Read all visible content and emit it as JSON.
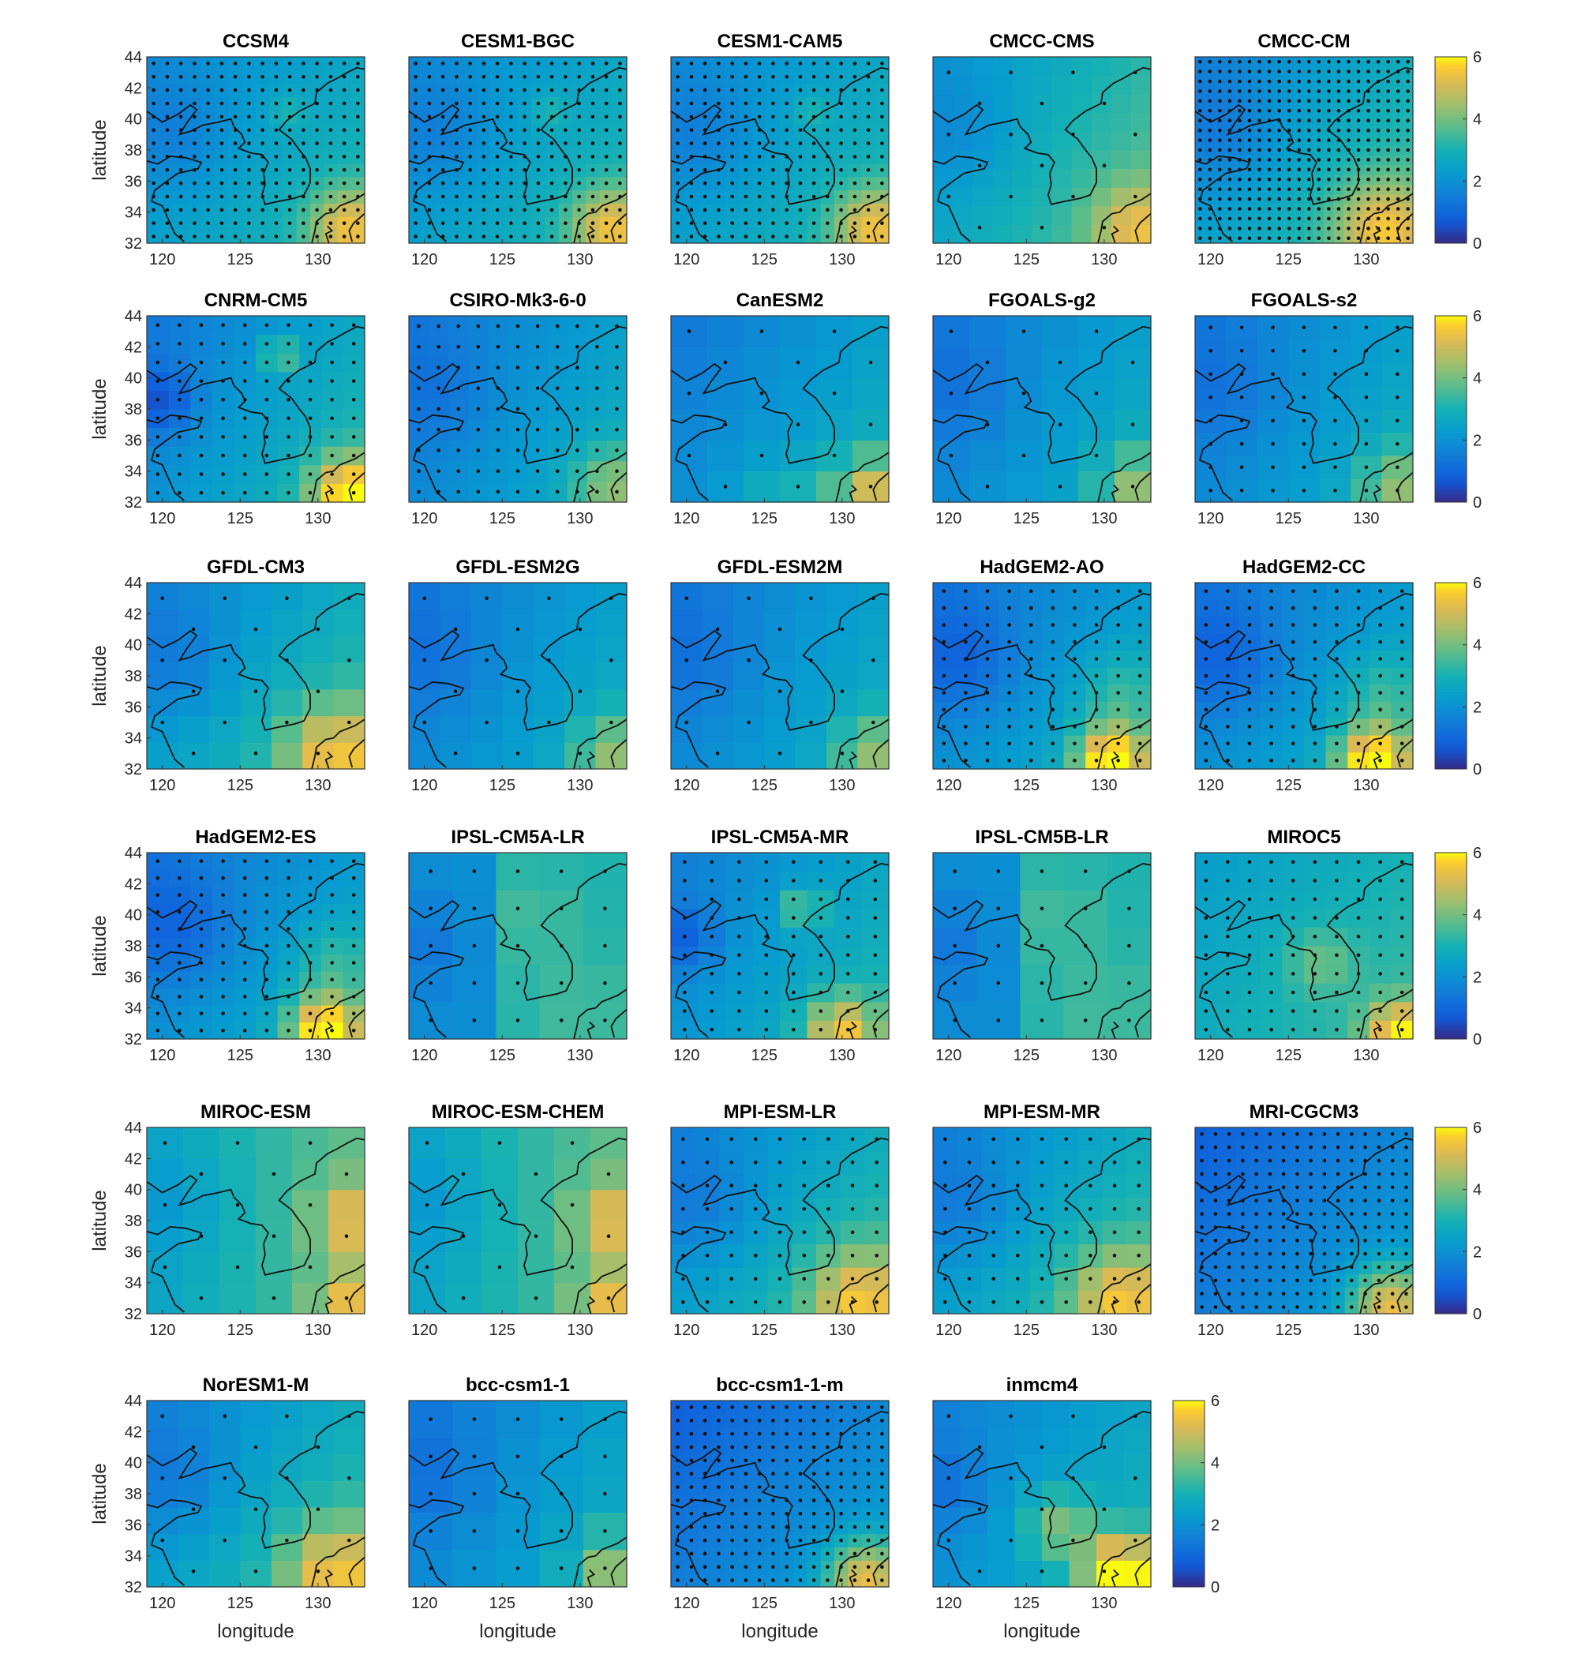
{
  "chart_data": {
    "type": "heatmap",
    "xlabel": "longitude",
    "ylabel": "latitude",
    "xlim": [
      119,
      133
    ],
    "ylim": [
      32,
      44
    ],
    "xticks": [
      120,
      125,
      130
    ],
    "yticks": [
      32,
      34,
      36,
      38,
      40,
      42,
      44
    ],
    "colorbar": {
      "min": 0,
      "max": 6,
      "ticks": [
        0,
        2,
        4,
        6
      ],
      "colormap": "parula"
    },
    "panels": [
      {
        "title": "CCSM4",
        "field": "wgrad",
        "grid": [
          16,
          14
        ],
        "stipple": "dense"
      },
      {
        "title": "CESM1-BGC",
        "field": "wgrad",
        "grid": [
          16,
          14
        ],
        "stipple": "dense"
      },
      {
        "title": "CESM1-CAM5",
        "field": "wgrad",
        "grid": [
          16,
          14
        ],
        "stipple": "dense"
      },
      {
        "title": "CMCC-CMS",
        "field": "emid",
        "grid": [
          11,
          10
        ],
        "stipple": "sparse"
      },
      {
        "title": "CMCC-CM",
        "field": "se",
        "grid": [
          22,
          19
        ],
        "stipple": "dense"
      },
      {
        "title": "CNRM-CM5",
        "field": "cnrm",
        "grid": [
          10,
          10
        ],
        "stipple": "medium"
      },
      {
        "title": "CSIRO-Mk3-6-0",
        "field": "cool",
        "grid": [
          11,
          9
        ],
        "stipple": "medium"
      },
      {
        "title": "CanESM2",
        "field": "coarse",
        "grid": [
          6,
          6
        ],
        "stipple": "sparse"
      },
      {
        "title": "FGOALS-g2",
        "field": "cool",
        "grid": [
          6,
          6
        ],
        "stipple": "sparse"
      },
      {
        "title": "FGOALS-s2",
        "field": "cool",
        "grid": [
          7,
          8
        ],
        "stipple": "medium"
      },
      {
        "title": "GFDL-CM3",
        "field": "se",
        "grid": [
          7,
          7
        ],
        "stipple": "sparse"
      },
      {
        "title": "GFDL-ESM2G",
        "field": "cool",
        "grid": [
          7,
          7
        ],
        "stipple": "sparse"
      },
      {
        "title": "GFDL-ESM2M",
        "field": "cool",
        "grid": [
          7,
          7
        ],
        "stipple": "sparse"
      },
      {
        "title": "HadGEM2-AO",
        "field": "hot",
        "grid": [
          10,
          11
        ],
        "stipple": "medium"
      },
      {
        "title": "HadGEM2-CC",
        "field": "hot",
        "grid": [
          10,
          11
        ],
        "stipple": "medium"
      },
      {
        "title": "HadGEM2-ES",
        "field": "hot",
        "grid": [
          10,
          11
        ],
        "stipple": "medium"
      },
      {
        "title": "IPSL-CM5A-LR",
        "field": "ipsl",
        "grid": [
          5,
          5
        ],
        "stipple": "sparse"
      },
      {
        "title": "IPSL-CM5A-MR",
        "field": "ipslmr",
        "grid": [
          8,
          10
        ],
        "stipple": "medium"
      },
      {
        "title": "IPSL-CM5B-LR",
        "field": "ipsl",
        "grid": [
          5,
          5
        ],
        "stipple": "sparse"
      },
      {
        "title": "MIROC5",
        "field": "miroc5",
        "grid": [
          10,
          10
        ],
        "stipple": "medium"
      },
      {
        "title": "MIROC-ESM",
        "field": "east",
        "grid": [
          6,
          6
        ],
        "stipple": "sparse"
      },
      {
        "title": "MIROC-ESM-CHEM",
        "field": "east",
        "grid": [
          6,
          6
        ],
        "stipple": "sparse"
      },
      {
        "title": "MPI-ESM-LR",
        "field": "se",
        "grid": [
          9,
          8
        ],
        "stipple": "medium"
      },
      {
        "title": "MPI-ESM-MR",
        "field": "se",
        "grid": [
          9,
          8
        ],
        "stipple": "medium"
      },
      {
        "title": "MRI-CGCM3",
        "field": "cold",
        "grid": [
          16,
          14
        ],
        "stipple": "dense"
      },
      {
        "title": "NorESM1-M",
        "field": "se",
        "grid": [
          7,
          7
        ],
        "stipple": "sparse"
      },
      {
        "title": "bcc-csm1-1",
        "field": "cool",
        "grid": [
          5,
          5
        ],
        "stipple": "sparse"
      },
      {
        "title": "bcc-csm1-1-m",
        "field": "cold",
        "grid": [
          16,
          14
        ],
        "stipple": "dense"
      },
      {
        "title": "inmcm4",
        "field": "inm",
        "grid": [
          8,
          7
        ],
        "stipple": "sparse"
      }
    ]
  }
}
